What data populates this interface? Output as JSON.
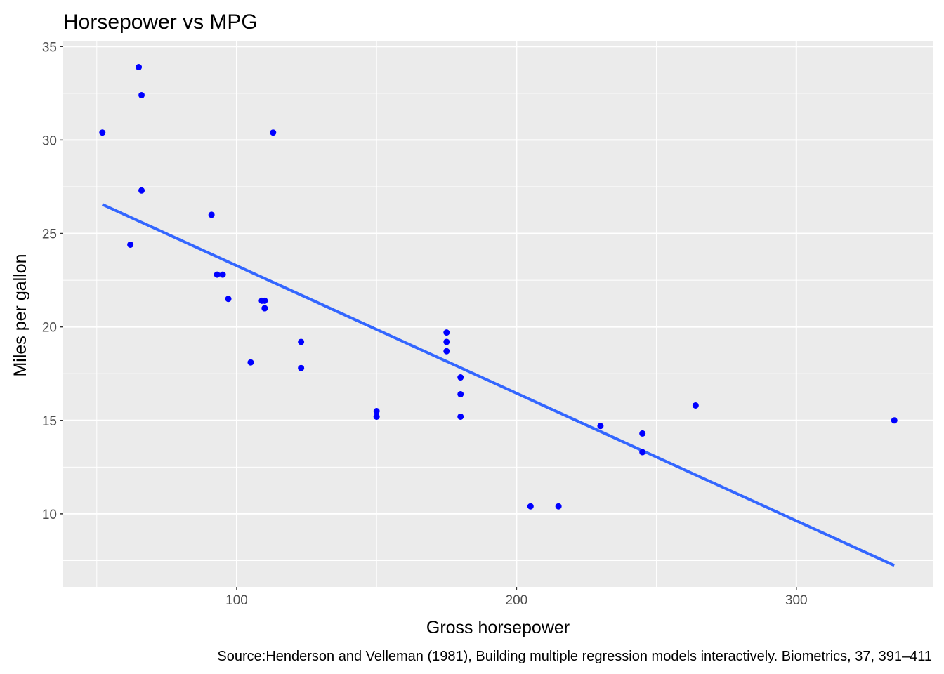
{
  "chart_data": {
    "type": "scatter",
    "title": "Horsepower vs MPG",
    "xlabel": "Gross horsepower",
    "ylabel": "Miles per gallon",
    "caption": "Source:Henderson and Velleman (1981), Building multiple regression models interactively. Biometrics, 37, 391–411",
    "xlim": [
      38,
      349
    ],
    "ylim": [
      6.09,
      35.31
    ],
    "x_ticks": [
      100,
      200,
      300
    ],
    "y_ticks": [
      10,
      15,
      20,
      25,
      30,
      35
    ],
    "x_tick_labels": [
      "100",
      "200",
      "300"
    ],
    "y_tick_labels": [
      "10",
      "15",
      "20",
      "25",
      "30",
      "35"
    ],
    "grid": true,
    "point_color": "#0000ff",
    "line_color": "#3366ff",
    "panel_background": "#ebebeb",
    "grid_color": "#ffffff",
    "series": [
      {
        "x": [
          110,
          110,
          93,
          110,
          175,
          105,
          245,
          62,
          95,
          123,
          123,
          180,
          180,
          180,
          205,
          215,
          230,
          66,
          52,
          65,
          97,
          150,
          150,
          245,
          175,
          66,
          91,
          113,
          264,
          175,
          335,
          109
        ],
        "y": [
          21.0,
          21.0,
          22.8,
          21.4,
          18.7,
          18.1,
          14.3,
          24.4,
          22.8,
          19.2,
          17.8,
          16.4,
          17.3,
          15.2,
          10.4,
          10.4,
          14.7,
          32.4,
          30.4,
          33.9,
          21.5,
          15.5,
          15.2,
          13.3,
          19.2,
          27.3,
          26.0,
          30.4,
          15.8,
          19.7,
          15.0,
          21.4
        ]
      }
    ],
    "trend_line": {
      "method": "linear",
      "x": [
        52,
        335
      ],
      "y": [
        26.55,
        7.24
      ]
    }
  }
}
